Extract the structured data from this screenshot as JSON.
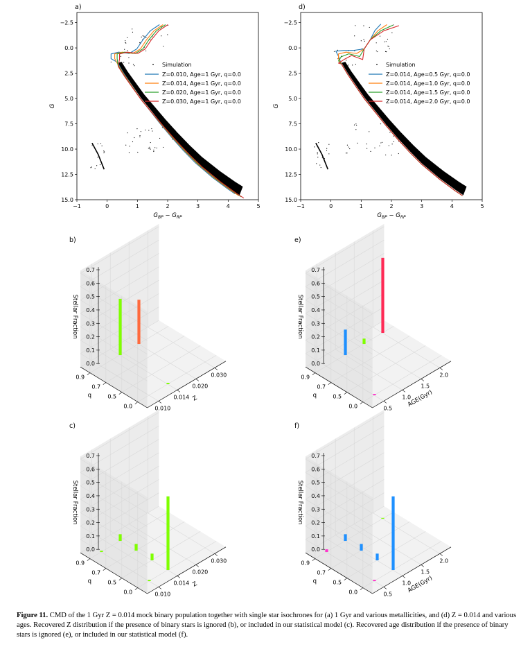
{
  "caption": {
    "label": "Figure 11.",
    "text": "CMD of the 1 Gyr Z = 0.014 mock binary population together with single star isochrones for (a) 1 Gyr and various metallicities, and (d) Z = 0.014 and various ages. Recovered Z distribution if the presence of binary stars is ignored (b), or included in our statistical model (c). Recovered age distribution if the presence of binary stars is ignored (e), or included in our statistical model (f)."
  },
  "chart_data": [
    {
      "id": "a",
      "type": "line",
      "panel_label": "a)",
      "xlabel": "G_BP − G_RP",
      "ylabel": "G",
      "xlim": [
        -1,
        5
      ],
      "ylim": [
        15.0,
        -3.5
      ],
      "xticks": [
        "−1",
        "0",
        "1",
        "2",
        "3",
        "4",
        "5"
      ],
      "yticks": [
        "−2.5",
        "0.0",
        "2.5",
        "5.0",
        "7.5",
        "10.0",
        "12.5",
        "15.0"
      ],
      "legend_position": "upper-right",
      "legend_scatter": "Simulation",
      "series": [
        {
          "name": "Z=0.010, Age=1 Gyr, q=0.0",
          "color": "#1f77b4",
          "shift": -0.12,
          "age": 1.0
        },
        {
          "name": "Z=0.014, Age=1 Gyr, q=0.0",
          "color": "#ff7f0e",
          "shift": 0.0,
          "age": 1.0
        },
        {
          "name": "Z=0.020, Age=1 Gyr, q=0.0",
          "color": "#2ca02c",
          "shift": 0.08,
          "age": 1.0
        },
        {
          "name": "Z=0.030, Age=1 Gyr, q=0.0",
          "color": "#d62728",
          "shift": 0.16,
          "age": 1.0
        }
      ]
    },
    {
      "id": "d",
      "type": "line",
      "panel_label": "d)",
      "xlabel": "G_BP − G_RP",
      "ylabel": "G",
      "xlim": [
        -1,
        5
      ],
      "ylim": [
        15.0,
        -3.5
      ],
      "xticks": [
        "−1",
        "0",
        "1",
        "2",
        "3",
        "4",
        "5"
      ],
      "yticks": [
        "−2.5",
        "0.0",
        "2.5",
        "5.0",
        "7.5",
        "10.0",
        "12.5",
        "15.0"
      ],
      "legend_position": "upper-right",
      "legend_scatter": "Simulation",
      "series": [
        {
          "name": "Z=0.014, Age=0.5 Gyr, q=0.0",
          "color": "#1f77b4",
          "shift": 0.0,
          "age": 0.5
        },
        {
          "name": "Z=0.014, Age=1.0 Gyr, q=0.0",
          "color": "#ff7f0e",
          "shift": 0.0,
          "age": 1.0
        },
        {
          "name": "Z=0.014, Age=1.5 Gyr, q=0.0",
          "color": "#2ca02c",
          "shift": 0.0,
          "age": 1.5
        },
        {
          "name": "Z=0.014, Age=2.0 Gyr, q=0.0",
          "color": "#d62728",
          "shift": 0.0,
          "age": 2.0
        }
      ]
    },
    {
      "id": "b",
      "type": "bar3d",
      "panel_label": "b)",
      "zlabel": "Stellar Fraction",
      "xlabel": "Z",
      "ylabel": "q",
      "xticks": [
        "0.010",
        "0.014",
        "0.020",
        "0.030"
      ],
      "yticks": [
        "0.0",
        "0.5",
        "0.7",
        "0.9"
      ],
      "zticks": [
        "0.0",
        "0.1",
        "0.2",
        "0.3",
        "0.4",
        "0.5",
        "0.6",
        "0.7"
      ],
      "zlim": [
        0,
        0.7
      ],
      "bars": [
        {
          "x": 1,
          "y": 0,
          "value": 0.01,
          "color": "#7fff00"
        },
        {
          "x": 1,
          "y": 3,
          "value": 0.42,
          "color": "#7fff00"
        },
        {
          "x": 2,
          "y": 3,
          "value": 0.33,
          "color": "#ff6a3d"
        }
      ]
    },
    {
      "id": "e",
      "type": "bar3d",
      "panel_label": "e)",
      "zlabel": "Stellar Fraction",
      "xlabel": "AGE(Gyr)",
      "ylabel": "q",
      "xticks": [
        "0.5",
        "1.0",
        "1.5",
        "2.0"
      ],
      "yticks": [
        "0.0",
        "0.5",
        "0.7",
        "0.9"
      ],
      "zticks": [
        "0.0",
        "0.1",
        "0.2",
        "0.3",
        "0.4",
        "0.5",
        "0.6",
        "0.7"
      ],
      "zlim": [
        0,
        0.7
      ],
      "bars": [
        {
          "x": 0,
          "y": 0,
          "value": 0.01,
          "color": "#ff33cc"
        },
        {
          "x": 1,
          "y": 3,
          "value": 0.19,
          "color": "#1e90ff"
        },
        {
          "x": 2,
          "y": 3,
          "value": 0.04,
          "color": "#7fff00"
        },
        {
          "x": 3,
          "y": 3,
          "value": 0.56,
          "color": "#ff2a55"
        }
      ]
    },
    {
      "id": "c",
      "type": "bar3d",
      "panel_label": "c)",
      "zlabel": "Stellar Fraction",
      "xlabel": "Z",
      "ylabel": "q",
      "xticks": [
        "0.010",
        "0.014",
        "0.020",
        "0.030"
      ],
      "yticks": [
        "0.0",
        "0.5",
        "0.7",
        "0.9"
      ],
      "zticks": [
        "0.0",
        "0.1",
        "0.2",
        "0.3",
        "0.4",
        "0.5",
        "0.6",
        "0.7"
      ],
      "zlim": [
        0,
        0.7
      ],
      "bars": [
        {
          "x": 0,
          "y": 3,
          "value": 0.01,
          "color": "#7fff00"
        },
        {
          "x": 1,
          "y": 3,
          "value": 0.05,
          "color": "#7fff00"
        },
        {
          "x": 1,
          "y": 2,
          "value": 0.05,
          "color": "#7fff00"
        },
        {
          "x": 1,
          "y": 1,
          "value": 0.05,
          "color": "#7fff00"
        },
        {
          "x": 1,
          "y": 0,
          "value": 0.55,
          "color": "#7fff00"
        },
        {
          "x": 0,
          "y": 0,
          "value": 0.01,
          "color": "#7fff00"
        }
      ]
    },
    {
      "id": "f",
      "type": "bar3d",
      "panel_label": "f)",
      "zlabel": "Stellar Fraction",
      "xlabel": "AGE(Gyr)",
      "ylabel": "q",
      "xticks": [
        "0.5",
        "1.0",
        "1.5",
        "2.0"
      ],
      "yticks": [
        "0.0",
        "0.5",
        "0.7",
        "0.9"
      ],
      "zticks": [
        "0.0",
        "0.1",
        "0.2",
        "0.3",
        "0.4",
        "0.5",
        "0.6",
        "0.7"
      ],
      "zlim": [
        0,
        0.7
      ],
      "bars": [
        {
          "x": 0,
          "y": 3,
          "value": 0.02,
          "color": "#ff33cc"
        },
        {
          "x": 0,
          "y": 0,
          "value": 0.01,
          "color": "#ff33cc"
        },
        {
          "x": 1,
          "y": 3,
          "value": 0.05,
          "color": "#1e90ff"
        },
        {
          "x": 1,
          "y": 2,
          "value": 0.05,
          "color": "#1e90ff"
        },
        {
          "x": 1,
          "y": 1,
          "value": 0.05,
          "color": "#1e90ff"
        },
        {
          "x": 1,
          "y": 0,
          "value": 0.55,
          "color": "#1e90ff"
        },
        {
          "x": 3,
          "y": 3,
          "value": 0.003,
          "color": "#7fff00"
        }
      ]
    }
  ]
}
